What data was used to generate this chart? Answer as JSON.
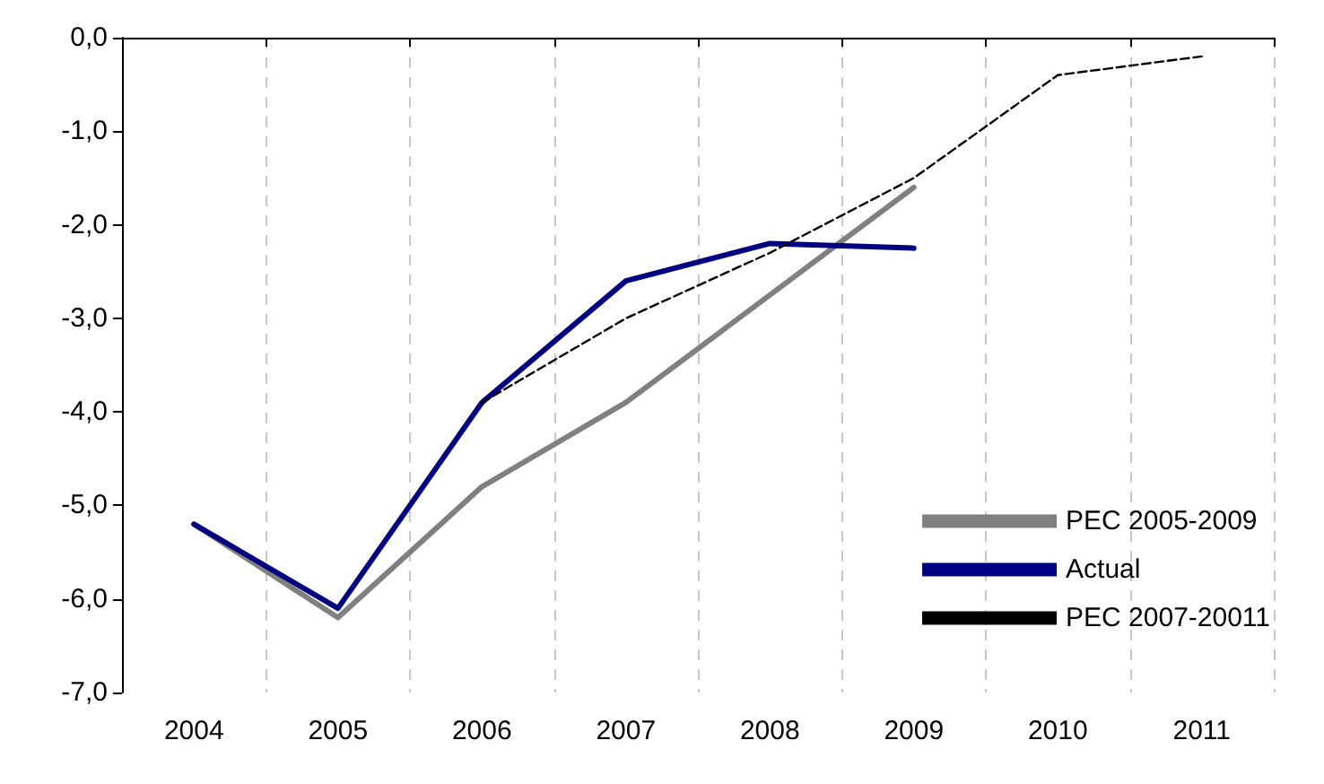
{
  "chart_data": {
    "type": "line",
    "categories": [
      "2004",
      "2005",
      "2006",
      "2007",
      "2008",
      "2009",
      "2010",
      "2011"
    ],
    "series": [
      {
        "name": "PEC 2005-2009",
        "color": "#808080",
        "line_style": "solid",
        "values": [
          -5.2,
          -6.2,
          -4.8,
          -3.9,
          -2.75,
          -1.6,
          null,
          null
        ]
      },
      {
        "name": "Actual",
        "color": "#000080",
        "line_style": "solid",
        "values": [
          -5.2,
          -6.1,
          -3.9,
          -2.6,
          -2.2,
          -2.25,
          null,
          null
        ]
      },
      {
        "name": "PEC 2007-20011",
        "color": "#000000",
        "line_style": "dashed",
        "values": [
          null,
          null,
          -3.9,
          -3.0,
          -2.3,
          -1.5,
          -0.4,
          -0.2
        ]
      }
    ],
    "ylim": [
      -7,
      0
    ],
    "yticks": [
      {
        "value": -7,
        "label": "-7,0"
      },
      {
        "value": -6,
        "label": "-6,0"
      },
      {
        "value": -5,
        "label": "-5,0"
      },
      {
        "value": -4,
        "label": "-4,0"
      },
      {
        "value": -3,
        "label": "-3,0"
      },
      {
        "value": -2,
        "label": "-2,0"
      },
      {
        "value": -1,
        "label": "-1,0"
      },
      {
        "value": 0,
        "label": "0,0"
      }
    ],
    "grid": "x",
    "legend": "bottom right",
    "marker": "none"
  }
}
